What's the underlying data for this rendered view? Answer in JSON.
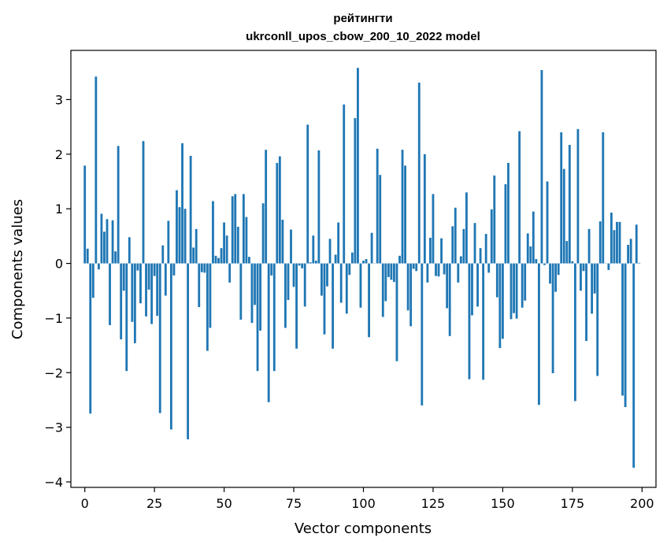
{
  "chart_data": {
    "type": "bar",
    "title": "рейтингти",
    "subtitle": "ukrconll_upos_cbow_200_10_2022 model",
    "xlabel": "Vector components",
    "ylabel": "Components values",
    "xlim": [
      -5,
      205
    ],
    "ylim": [
      -4.1,
      3.9
    ],
    "xticks": [
      0,
      25,
      50,
      75,
      100,
      125,
      150,
      175,
      200
    ],
    "yticks": [
      -4,
      -3,
      -2,
      -1,
      0,
      1,
      2,
      3
    ],
    "xtick_labels": [
      "0",
      "25",
      "50",
      "75",
      "100",
      "125",
      "150",
      "175",
      "200"
    ],
    "ytick_labels": [
      "−4",
      "−3",
      "−2",
      "−1",
      "0",
      "1",
      "2",
      "3"
    ],
    "bar_color": "#1f77b4",
    "grid": false,
    "x": [
      0,
      1,
      2,
      3,
      4,
      5,
      6,
      7,
      8,
      9,
      10,
      11,
      12,
      13,
      14,
      15,
      16,
      17,
      18,
      19,
      20,
      21,
      22,
      23,
      24,
      25,
      26,
      27,
      28,
      29,
      30,
      31,
      32,
      33,
      34,
      35,
      36,
      37,
      38,
      39,
      40,
      41,
      42,
      43,
      44,
      45,
      46,
      47,
      48,
      49,
      50,
      51,
      52,
      53,
      54,
      55,
      56,
      57,
      58,
      59,
      60,
      61,
      62,
      63,
      64,
      65,
      66,
      67,
      68,
      69,
      70,
      71,
      72,
      73,
      74,
      75,
      76,
      77,
      78,
      79,
      80,
      81,
      82,
      83,
      84,
      85,
      86,
      87,
      88,
      89,
      90,
      91,
      92,
      93,
      94,
      95,
      96,
      97,
      98,
      99,
      100,
      101,
      102,
      103,
      104,
      105,
      106,
      107,
      108,
      109,
      110,
      111,
      112,
      113,
      114,
      115,
      116,
      117,
      118,
      119,
      120,
      121,
      122,
      123,
      124,
      125,
      126,
      127,
      128,
      129,
      130,
      131,
      132,
      133,
      134,
      135,
      136,
      137,
      138,
      139,
      140,
      141,
      142,
      143,
      144,
      145,
      146,
      147,
      148,
      149,
      150,
      151,
      152,
      153,
      154,
      155,
      156,
      157,
      158,
      159,
      160,
      161,
      162,
      163,
      164,
      165,
      166,
      167,
      168,
      169,
      170,
      171,
      172,
      173,
      174,
      175,
      176,
      177,
      178,
      179,
      180,
      181,
      182,
      183,
      184,
      185,
      186,
      187,
      188,
      189,
      190,
      191,
      192,
      193,
      194,
      195,
      196,
      197,
      198,
      199
    ],
    "values": [
      1.79,
      0.27,
      -2.75,
      -0.63,
      3.42,
      -0.11,
      0.91,
      0.58,
      0.81,
      -1.13,
      0.79,
      0.22,
      2.15,
      -1.39,
      -0.5,
      -1.97,
      0.48,
      -1.07,
      -1.46,
      -0.13,
      -0.73,
      2.24,
      -0.97,
      -0.48,
      -1.11,
      -0.23,
      -0.96,
      -2.74,
      0.33,
      -0.59,
      0.78,
      -3.04,
      -0.22,
      1.34,
      1.03,
      2.2,
      1.0,
      -3.22,
      1.97,
      0.29,
      0.63,
      -0.8,
      -0.16,
      -0.17,
      -1.6,
      -1.18,
      1.14,
      0.14,
      0.1,
      0.28,
      0.75,
      0.51,
      -0.35,
      1.23,
      1.27,
      0.67,
      -1.03,
      1.27,
      0.85,
      0.12,
      -1.09,
      -0.76,
      -1.97,
      -1.23,
      1.1,
      2.08,
      -2.54,
      -0.22,
      -1.97,
      1.84,
      1.96,
      0.8,
      -1.18,
      -0.67,
      0.62,
      -0.43,
      -1.56,
      -0.04,
      -0.09,
      -0.79,
      2.54,
      0.02,
      0.51,
      0.05,
      2.07,
      -0.59,
      -1.3,
      -0.42,
      0.45,
      -1.56,
      0.16,
      0.75,
      -0.72,
      2.91,
      -0.92,
      -0.21,
      0.2,
      2.66,
      3.58,
      -0.81,
      0.05,
      0.08,
      -1.35,
      0.56,
      0.0,
      2.1,
      1.62,
      -0.98,
      -0.69,
      -0.25,
      -0.3,
      -0.34,
      -1.79,
      0.14,
      2.08,
      1.79,
      -0.86,
      -1.15,
      -0.1,
      -0.14,
      3.31,
      -2.6,
      2.0,
      -0.35,
      0.47,
      1.27,
      -0.23,
      -0.24,
      0.46,
      -0.2,
      -0.82,
      -1.33,
      0.68,
      1.02,
      -0.35,
      0.13,
      0.63,
      1.3,
      -2.12,
      -0.95,
      0.74,
      -0.79,
      0.28,
      -2.13,
      0.54,
      -0.17,
      0.99,
      1.61,
      -0.62,
      -1.55,
      -1.38,
      1.45,
      1.84,
      -1.02,
      -0.91,
      -1.01,
      2.42,
      -0.81,
      -0.68,
      0.55,
      0.31,
      0.95,
      0.08,
      -2.59,
      3.54,
      -0.03,
      1.5,
      -0.37,
      -2.01,
      -0.52,
      -0.21,
      2.4,
      1.73,
      0.41,
      2.17,
      0.04,
      -2.52,
      2.46,
      -0.5,
      -0.14,
      -1.42,
      0.63,
      -0.92,
      -0.55,
      -2.06,
      0.77,
      2.4,
      0.0,
      -0.12,
      0.93,
      0.61,
      0.76,
      0.76,
      -2.42,
      -2.63,
      0.34,
      0.45,
      -3.74,
      0.71,
      0.01
    ]
  }
}
